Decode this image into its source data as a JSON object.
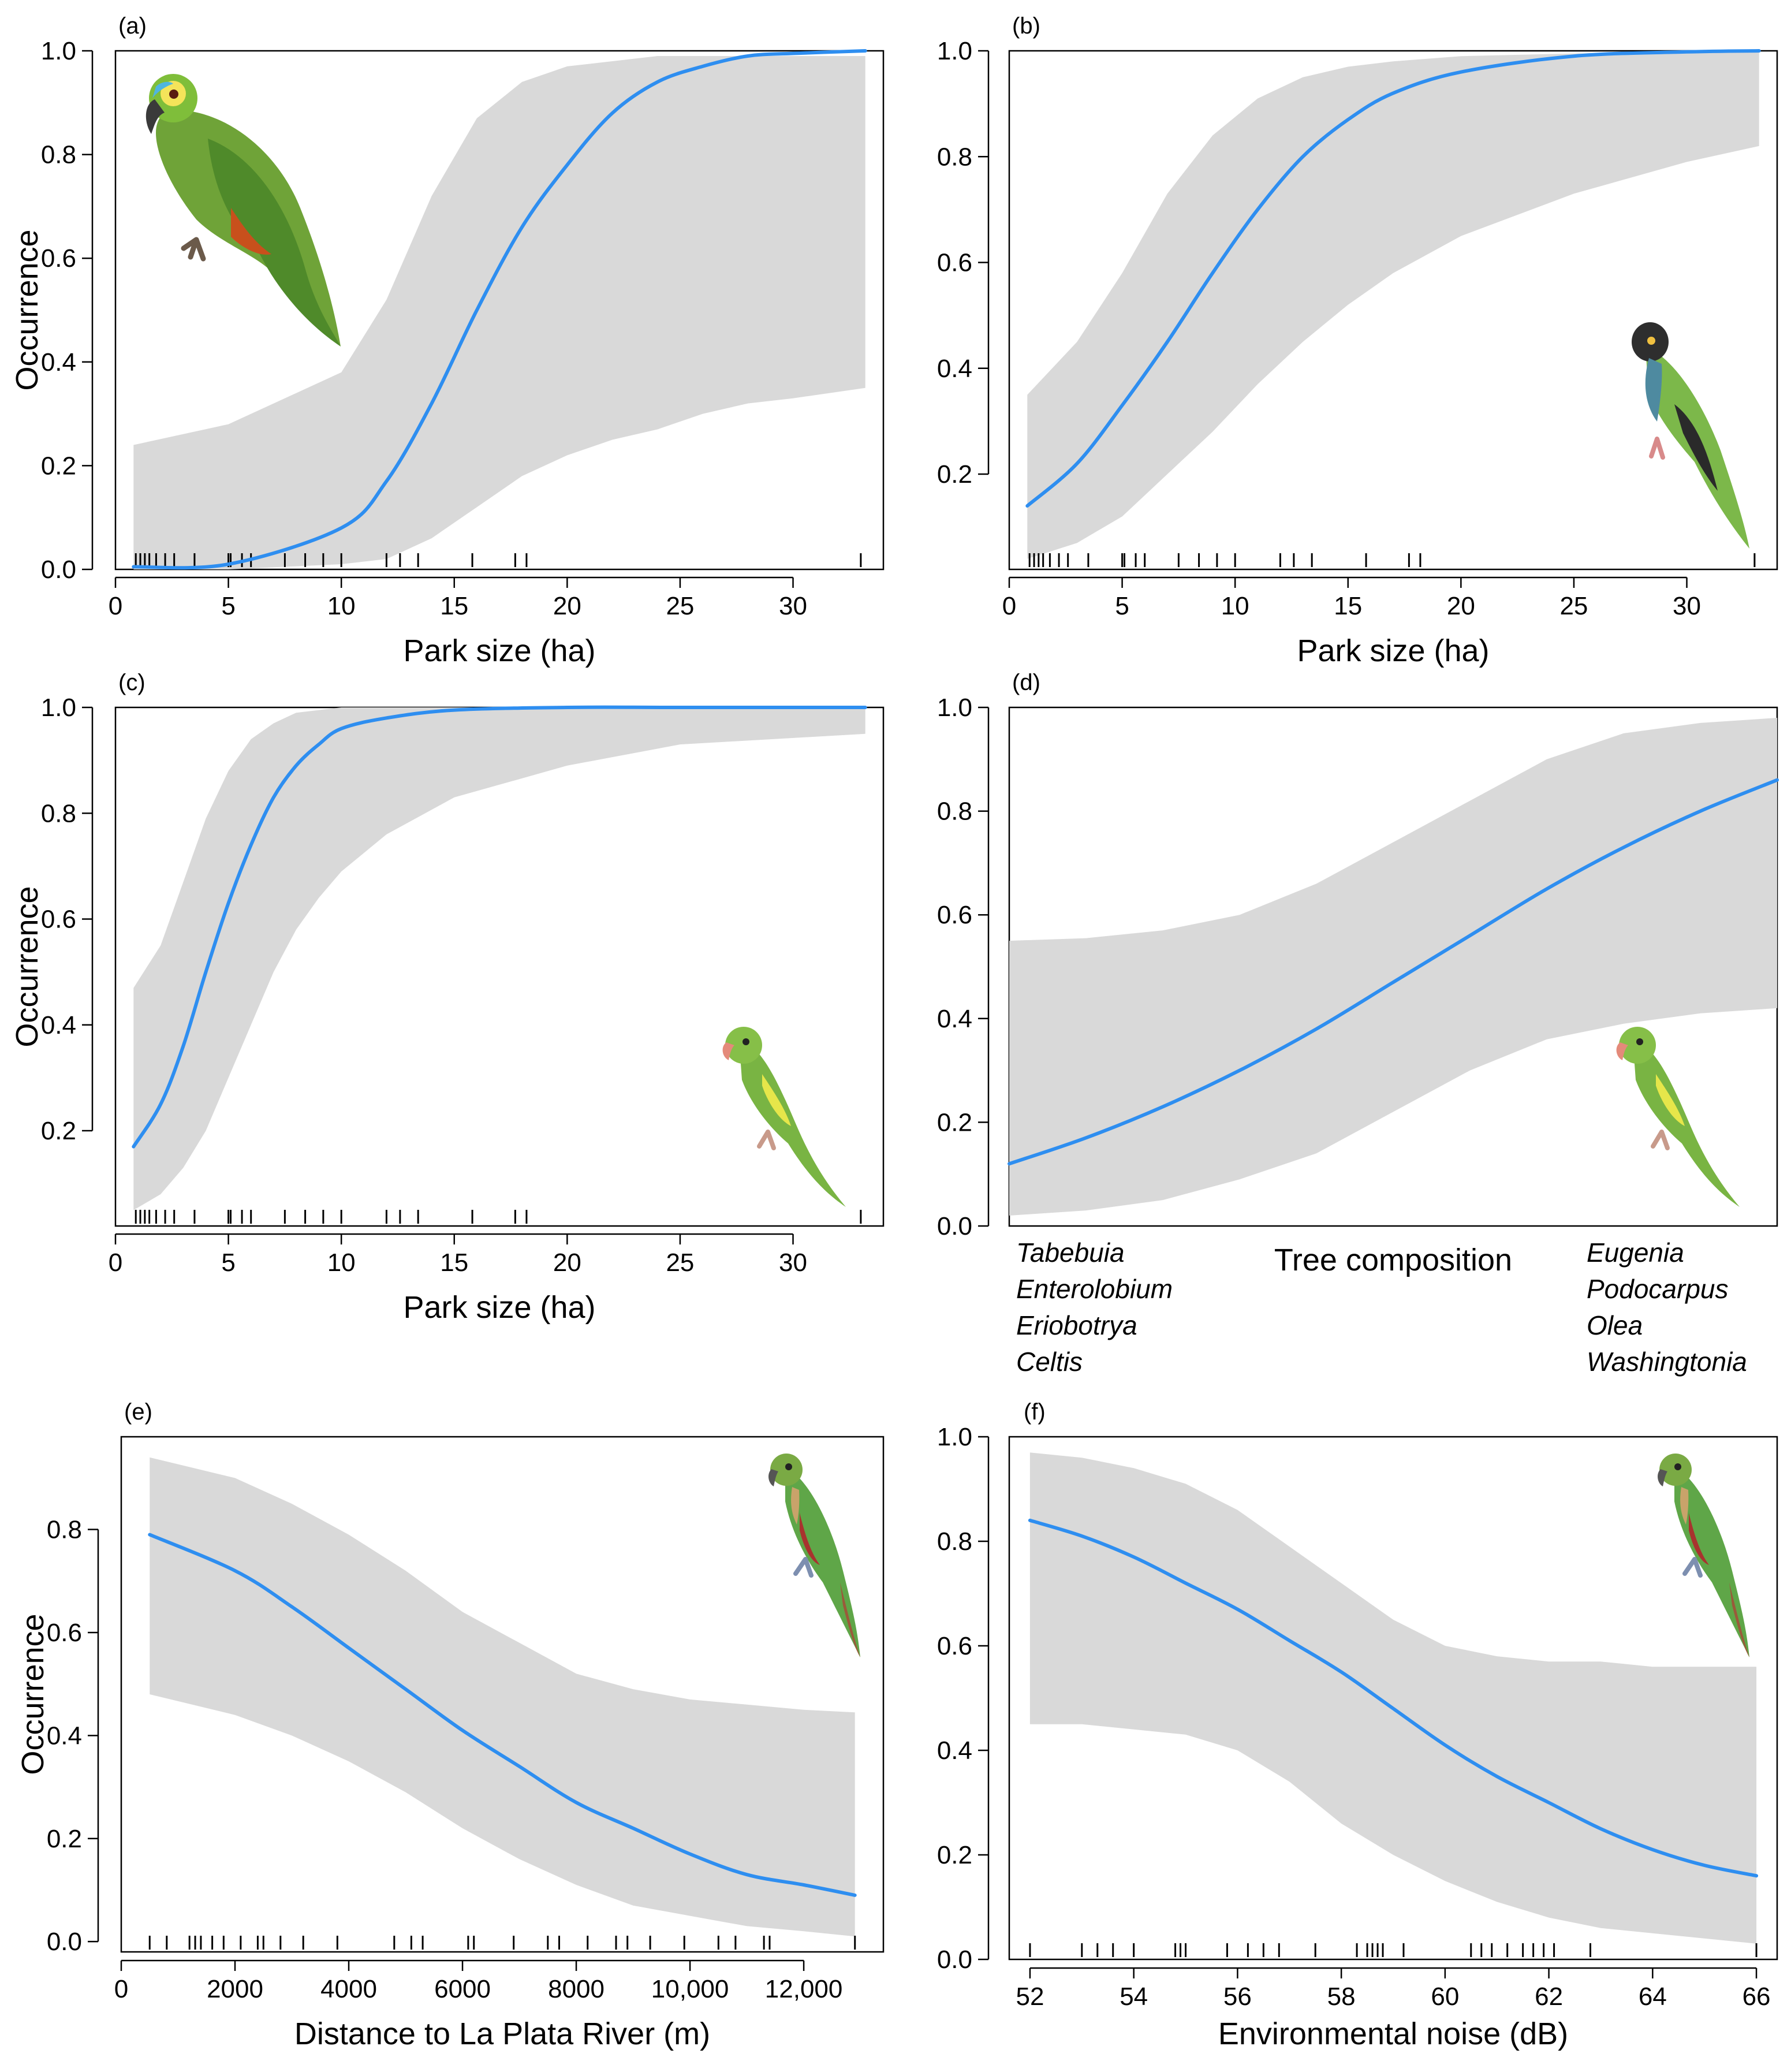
{
  "chart_data": [
    {
      "panel": "(a)",
      "type": "line",
      "xlabel": "Park size (ha)",
      "ylabel": "Occurrence",
      "xlim": [
        0,
        34
      ],
      "ylim": [
        0,
        1
      ],
      "x_ticks": [
        0,
        5,
        10,
        15,
        20,
        25,
        30
      ],
      "x_tick_labels": [
        "0",
        "5",
        "10",
        "15",
        "20",
        "25",
        "30"
      ],
      "y_ticks": [
        0,
        0.2,
        0.4,
        0.6,
        0.8,
        1.0
      ],
      "y_tick_labels": [
        "0.0",
        "0.2",
        "0.4",
        "0.6",
        "0.8",
        "1.0"
      ],
      "grid": false,
      "series": [
        {
          "x": [
            0.8,
            5,
            10,
            12,
            14,
            16,
            18,
            20,
            22,
            24,
            26,
            28,
            30,
            33.2
          ],
          "y": [
            0.005,
            0.01,
            0.08,
            0.17,
            0.32,
            0.5,
            0.66,
            0.78,
            0.88,
            0.94,
            0.97,
            0.99,
            0.995,
            1.0
          ],
          "lower": [
            0.0,
            0.0,
            0.01,
            0.02,
            0.06,
            0.12,
            0.18,
            0.22,
            0.25,
            0.27,
            0.3,
            0.32,
            0.33,
            0.35
          ],
          "upper": [
            0.24,
            0.28,
            0.38,
            0.52,
            0.72,
            0.87,
            0.94,
            0.97,
            0.98,
            0.99,
            0.99,
            0.99,
            0.99,
            0.99
          ]
        }
      ],
      "rug": [
        0.9,
        1.1,
        1.3,
        1.5,
        1.8,
        2.2,
        2.6,
        3.5,
        5.0,
        5.1,
        5.6,
        6.0,
        7.5,
        8.4,
        9.2,
        10.0,
        12.0,
        12.6,
        13.4,
        15.8,
        17.7,
        18.2,
        33.0
      ]
    },
    {
      "panel": "(b)",
      "type": "line",
      "xlabel": "Park size (ha)",
      "ylabel": "",
      "xlim": [
        0,
        34
      ],
      "ylim": [
        0.02,
        1
      ],
      "x_ticks": [
        0,
        5,
        10,
        15,
        20,
        25,
        30
      ],
      "x_tick_labels": [
        "0",
        "5",
        "10",
        "15",
        "20",
        "25",
        "30"
      ],
      "y_ticks": [
        0.2,
        0.4,
        0.6,
        0.8,
        1.0
      ],
      "y_tick_labels": [
        "0.2",
        "0.4",
        "0.6",
        "0.8",
        "1.0"
      ],
      "grid": false,
      "series": [
        {
          "x": [
            0.8,
            3,
            5,
            7,
            9,
            11,
            13,
            15,
            17,
            20,
            25,
            30,
            33.2
          ],
          "y": [
            0.14,
            0.22,
            0.33,
            0.45,
            0.58,
            0.7,
            0.8,
            0.87,
            0.92,
            0.96,
            0.99,
            0.998,
            1.0
          ],
          "lower": [
            0.04,
            0.07,
            0.12,
            0.2,
            0.28,
            0.37,
            0.45,
            0.52,
            0.58,
            0.65,
            0.73,
            0.79,
            0.82
          ],
          "upper": [
            0.35,
            0.45,
            0.58,
            0.73,
            0.84,
            0.91,
            0.95,
            0.97,
            0.98,
            0.99,
            0.995,
            0.998,
            0.999
          ]
        }
      ],
      "rug": [
        0.9,
        1.1,
        1.3,
        1.5,
        1.8,
        2.2,
        2.6,
        3.5,
        5.0,
        5.1,
        5.6,
        6.0,
        7.5,
        8.4,
        9.2,
        10.0,
        12.0,
        12.6,
        13.4,
        15.8,
        17.7,
        18.2,
        33.0
      ]
    },
    {
      "panel": "(c)",
      "type": "line",
      "xlabel": "Park size (ha)",
      "ylabel": "Occurrence",
      "xlim": [
        0,
        34
      ],
      "ylim": [
        0.02,
        1
      ],
      "x_ticks": [
        0,
        5,
        10,
        15,
        20,
        25,
        30
      ],
      "x_tick_labels": [
        "0",
        "5",
        "10",
        "15",
        "20",
        "25",
        "30"
      ],
      "y_ticks": [
        0.2,
        0.4,
        0.6,
        0.8,
        1.0
      ],
      "y_tick_labels": [
        "0.2",
        "0.4",
        "0.6",
        "0.8",
        "1.0"
      ],
      "grid": false,
      "series": [
        {
          "x": [
            0.8,
            2,
            3,
            4,
            5,
            6,
            7,
            8,
            9,
            10,
            12,
            15,
            20,
            25,
            33.2
          ],
          "y": [
            0.17,
            0.25,
            0.36,
            0.5,
            0.63,
            0.74,
            0.83,
            0.89,
            0.93,
            0.96,
            0.98,
            0.995,
            1.0,
            1.0,
            1.0
          ],
          "lower": [
            0.05,
            0.08,
            0.13,
            0.2,
            0.3,
            0.4,
            0.5,
            0.58,
            0.64,
            0.69,
            0.76,
            0.83,
            0.89,
            0.93,
            0.95
          ],
          "upper": [
            0.47,
            0.55,
            0.67,
            0.79,
            0.88,
            0.94,
            0.97,
            0.99,
            0.995,
            1.0,
            1.0,
            1.0,
            1.0,
            1.0,
            1.0
          ]
        }
      ],
      "rug": [
        0.9,
        1.1,
        1.3,
        1.5,
        1.8,
        2.2,
        2.6,
        3.5,
        5.0,
        5.1,
        5.6,
        6.0,
        7.5,
        8.4,
        9.2,
        10.0,
        12.0,
        12.6,
        13.4,
        15.8,
        17.7,
        18.2,
        33.0
      ]
    },
    {
      "panel": "(d)",
      "type": "line",
      "xlabel": "Tree composition",
      "ylabel": "",
      "xlim": [
        0,
        1
      ],
      "ylim": [
        0,
        1
      ],
      "x_ticks": [],
      "x_tick_labels": [],
      "y_ticks": [
        0,
        0.2,
        0.4,
        0.6,
        0.8,
        1.0
      ],
      "y_tick_labels": [
        "0.0",
        "0.2",
        "0.4",
        "0.6",
        "0.8",
        "1.0"
      ],
      "grid": false,
      "x_low_labels": [
        "Tabebuia",
        "Enterolobium",
        "Eriobotrya",
        "Celtis"
      ],
      "x_high_labels": [
        "Eugenia",
        "Podocarpus",
        "Olea",
        "Washingtonia"
      ],
      "series": [
        {
          "x": [
            0.0,
            0.1,
            0.2,
            0.3,
            0.4,
            0.5,
            0.6,
            0.7,
            0.8,
            0.9,
            1.0
          ],
          "y": [
            0.12,
            0.17,
            0.23,
            0.3,
            0.38,
            0.47,
            0.56,
            0.65,
            0.73,
            0.8,
            0.86
          ],
          "lower": [
            0.02,
            0.03,
            0.05,
            0.09,
            0.14,
            0.22,
            0.3,
            0.36,
            0.39,
            0.41,
            0.42
          ],
          "upper": [
            0.55,
            0.555,
            0.57,
            0.6,
            0.66,
            0.74,
            0.82,
            0.9,
            0.95,
            0.97,
            0.98
          ]
        }
      ],
      "rug": []
    },
    {
      "panel": "(e)",
      "type": "line",
      "xlabel": "Distance to La Plata River (m)",
      "ylabel": "Occurrence",
      "xlim": [
        0,
        13400
      ],
      "ylim": [
        -0.02,
        0.98
      ],
      "x_ticks": [
        0,
        2000,
        4000,
        6000,
        8000,
        10000,
        12000
      ],
      "x_tick_labels": [
        "0",
        "2000",
        "4000",
        "6000",
        "8000",
        "10,000",
        "12,000"
      ],
      "y_ticks": [
        0,
        0.2,
        0.4,
        0.6,
        0.8
      ],
      "y_tick_labels": [
        "0.0",
        "0.2",
        "0.4",
        "0.6",
        "0.8"
      ],
      "grid": false,
      "series": [
        {
          "x": [
            500,
            2000,
            3000,
            4000,
            5000,
            6000,
            7000,
            8000,
            9000,
            10000,
            11000,
            12000,
            12900
          ],
          "y": [
            0.79,
            0.72,
            0.65,
            0.57,
            0.49,
            0.41,
            0.34,
            0.27,
            0.22,
            0.17,
            0.13,
            0.11,
            0.09
          ],
          "lower": [
            0.48,
            0.44,
            0.4,
            0.35,
            0.29,
            0.22,
            0.16,
            0.11,
            0.07,
            0.05,
            0.03,
            0.02,
            0.01
          ],
          "upper": [
            0.94,
            0.9,
            0.85,
            0.79,
            0.72,
            0.64,
            0.58,
            0.52,
            0.49,
            0.47,
            0.46,
            0.45,
            0.445
          ]
        }
      ],
      "rug": [
        500,
        800,
        1200,
        1300,
        1400,
        1600,
        1800,
        2100,
        2400,
        2500,
        2800,
        3200,
        3800,
        4800,
        5100,
        5300,
        6100,
        6200,
        6900,
        7500,
        7700,
        8200,
        8700,
        8900,
        9300,
        9900,
        10500,
        10800,
        11300,
        11400,
        12900
      ]
    },
    {
      "panel": "(f)",
      "type": "line",
      "xlabel": "Environmental noise (dB)",
      "ylabel": "",
      "xlim": [
        51.6,
        66.4
      ],
      "ylim": [
        0,
        1
      ],
      "x_ticks": [
        52,
        54,
        56,
        58,
        60,
        62,
        64,
        66
      ],
      "x_tick_labels": [
        "52",
        "54",
        "56",
        "58",
        "60",
        "62",
        "64",
        "66"
      ],
      "y_ticks": [
        0,
        0.2,
        0.4,
        0.6,
        0.8,
        1.0
      ],
      "y_tick_labels": [
        "0.0",
        "0.2",
        "0.4",
        "0.6",
        "0.8",
        "1.0"
      ],
      "grid": false,
      "series": [
        {
          "x": [
            52,
            53,
            54,
            55,
            56,
            57,
            58,
            59,
            60,
            61,
            62,
            63,
            64,
            65,
            66
          ],
          "y": [
            0.84,
            0.81,
            0.77,
            0.72,
            0.67,
            0.61,
            0.55,
            0.48,
            0.41,
            0.35,
            0.3,
            0.25,
            0.21,
            0.18,
            0.16
          ],
          "lower": [
            0.45,
            0.45,
            0.44,
            0.43,
            0.4,
            0.34,
            0.26,
            0.2,
            0.15,
            0.11,
            0.08,
            0.06,
            0.05,
            0.04,
            0.03
          ],
          "upper": [
            0.97,
            0.96,
            0.94,
            0.91,
            0.86,
            0.79,
            0.72,
            0.65,
            0.6,
            0.58,
            0.57,
            0.57,
            0.56,
            0.56,
            0.56
          ]
        }
      ],
      "rug": [
        52.0,
        53.0,
        53.3,
        53.6,
        54.0,
        54.8,
        54.9,
        55.0,
        55.8,
        56.2,
        56.5,
        56.8,
        57.5,
        58.3,
        58.5,
        58.6,
        58.7,
        58.8,
        59.2,
        60.5,
        60.7,
        60.9,
        61.2,
        61.5,
        61.7,
        61.9,
        62.1,
        62.8,
        66.0
      ]
    }
  ]
}
